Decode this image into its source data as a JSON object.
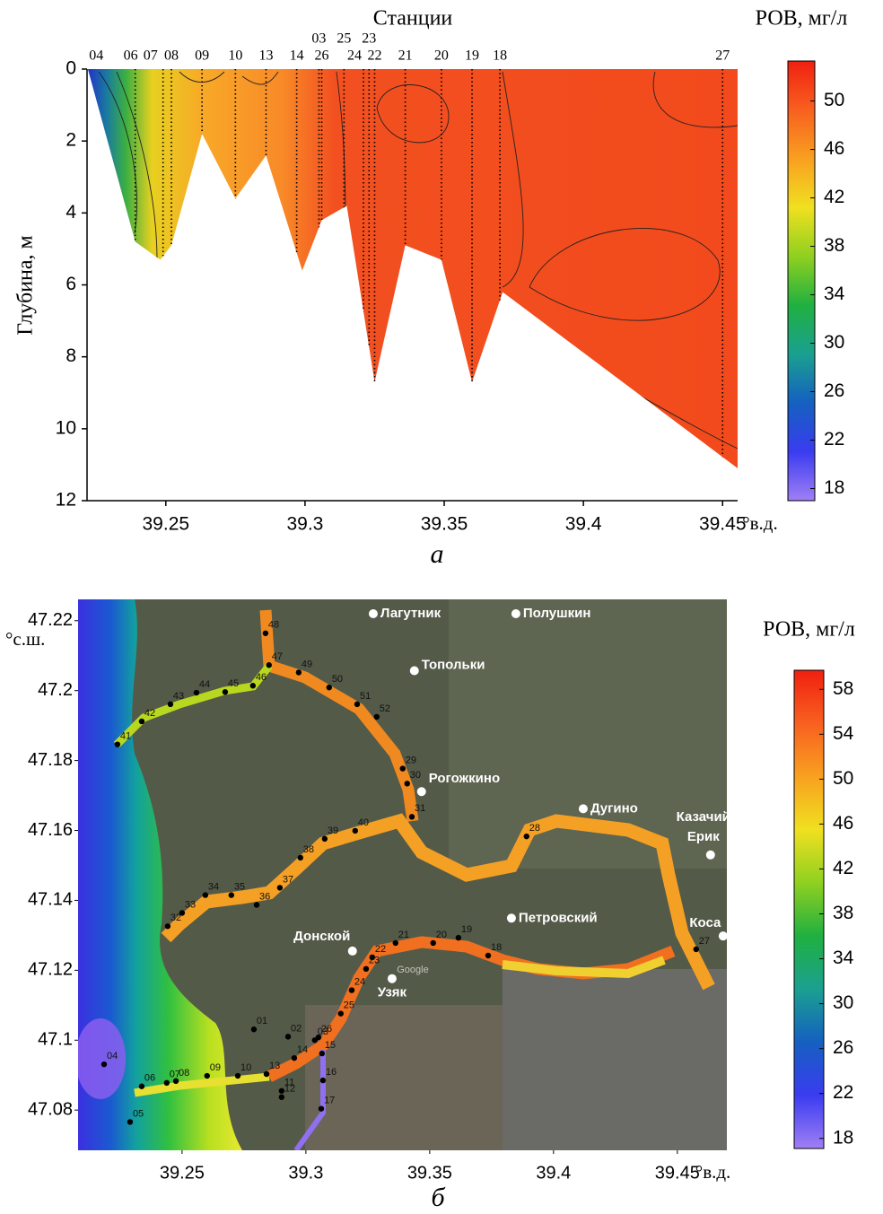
{
  "chart_data": [
    {
      "type": "contour-section",
      "x_top_label": "Станции",
      "ylabel": "Глубина, м",
      "x_unit_label": "°в.д.",
      "colorbar_label": "РОВ, мг/л",
      "panel_label": "а",
      "xlim": [
        39.2217,
        39.4554
      ],
      "xticks": [
        39.25,
        39.3,
        39.35,
        39.4,
        39.45
      ],
      "ylim": [
        0,
        12
      ],
      "yticks": [
        0,
        2,
        4,
        6,
        8,
        10,
        12
      ],
      "y_inverted": true,
      "colorbar_lim": [
        17,
        53.3
      ],
      "colorbar_ticks": [
        18,
        22,
        26,
        30,
        34,
        38,
        42,
        46,
        50
      ],
      "colorscale": [
        "#a07ff5",
        "#3a3cf0",
        "#1560c0",
        "#1aa090",
        "#20b040",
        "#8fd020",
        "#f0e020",
        "#f8a020",
        "#f86020",
        "#f02010"
      ],
      "stations": {
        "names": [
          "04",
          "06",
          "07",
          "08",
          "09",
          "10",
          "13",
          "14",
          "03",
          "26",
          "25",
          "24",
          "23",
          "22",
          "21",
          "20",
          "19",
          "18",
          "27"
        ],
        "lon": [
          39.225,
          39.239,
          39.249,
          39.252,
          39.263,
          39.275,
          39.286,
          39.297,
          39.305,
          39.306,
          39.314,
          39.321,
          39.323,
          39.325,
          39.336,
          39.349,
          39.36,
          39.37,
          39.45
        ]
      },
      "bottom": {
        "lon": [
          39.222,
          39.239,
          39.248,
          39.252,
          39.263,
          39.275,
          39.286,
          39.299,
          39.306,
          39.315,
          39.325,
          39.336,
          39.349,
          39.36,
          39.371,
          39.4554,
          39.4554
        ],
        "depth": [
          0,
          4.8,
          5.3,
          4.9,
          1.8,
          3.6,
          2.4,
          5.6,
          4.2,
          3.8,
          8.7,
          4.9,
          5.3,
          8.7,
          6.2,
          11.1,
          0
        ]
      }
    },
    {
      "type": "map",
      "x_unit_label": "°в.д.",
      "y_unit_label": "°с.ш.",
      "colorbar_label": "РОВ, мг/л",
      "panel_label": "б",
      "watermark": "Google",
      "xlim": [
        39.208,
        39.47
      ],
      "xticks": [
        39.25,
        39.3,
        39.35,
        39.4,
        39.45
      ],
      "ylim": [
        47.0685,
        47.2261
      ],
      "yticks": [
        47.08,
        47.1,
        47.12,
        47.14,
        47.16,
        47.18,
        47.2,
        47.22
      ],
      "colorbar_lim": [
        17.1,
        59.7
      ],
      "colorbar_ticks": [
        18,
        22,
        26,
        30,
        34,
        38,
        42,
        46,
        50,
        54,
        58
      ],
      "colorscale": [
        "#a07ff5",
        "#3a3cf0",
        "#1560c0",
        "#1aa090",
        "#20b040",
        "#8fd020",
        "#f0e020",
        "#f8a020",
        "#f86020",
        "#f02010"
      ],
      "stations": {
        "names": [
          "48",
          "47",
          "49",
          "50",
          "51",
          "52",
          "46",
          "45",
          "44",
          "43",
          "42",
          "41",
          "29",
          "30",
          "31",
          "40",
          "39",
          "38",
          "37",
          "36",
          "35",
          "34",
          "33",
          "32",
          "28",
          "27",
          "18",
          "19",
          "20",
          "21",
          "22",
          "23",
          "24",
          "25",
          "26",
          "03",
          "02",
          "01",
          "14",
          "15",
          "16",
          "17",
          "13",
          "11",
          "12",
          "10",
          "09",
          "08",
          "07",
          "06",
          "04",
          "05"
        ],
        "lon": [
          39.2837,
          39.2851,
          39.2971,
          39.3094,
          39.3207,
          39.3286,
          39.2786,
          39.2674,
          39.2558,
          39.2453,
          39.2337,
          39.2239,
          39.3391,
          39.3409,
          39.3428,
          39.3199,
          39.3076,
          39.2978,
          39.2895,
          39.2801,
          39.2699,
          39.2594,
          39.25,
          39.2442,
          39.3891,
          39.4576,
          39.3736,
          39.3616,
          39.3514,
          39.3362,
          39.3268,
          39.3243,
          39.3185,
          39.3141,
          39.3051,
          39.3036,
          39.2928,
          39.279,
          39.2953,
          39.3065,
          39.3069,
          39.3062,
          39.2841,
          39.2902,
          39.2902,
          39.2725,
          39.2601,
          39.2475,
          39.2438,
          39.2337,
          39.2185,
          39.229
        ],
        "lat": [
          47.2164,
          47.2073,
          47.2052,
          47.2009,
          47.1961,
          47.1925,
          47.2014,
          47.1996,
          47.1994,
          47.1961,
          47.1912,
          47.1846,
          47.1777,
          47.1734,
          47.1639,
          47.1599,
          47.1576,
          47.1522,
          47.1436,
          47.1387,
          47.1415,
          47.1415,
          47.1364,
          47.1326,
          47.1583,
          47.126,
          47.1242,
          47.1293,
          47.1278,
          47.1278,
          47.1237,
          47.1204,
          47.1143,
          47.1076,
          47.1008,
          47.1,
          47.101,
          47.1031,
          47.0949,
          47.0962,
          47.0885,
          47.0804,
          47.0903,
          47.0855,
          47.0837,
          47.0898,
          47.0898,
          47.0883,
          47.0878,
          47.0868,
          47.0931,
          47.0766
        ]
      },
      "places": {
        "names": [
          "Лагутник",
          "Полушкин",
          "Топольки",
          "Рогожкино",
          "Дугино",
          [
            "Казачий",
            "Ерик"
          ],
          "Петровский",
          "Донской",
          "Узяк",
          "Коса"
        ],
        "lon": [
          39.3272,
          39.3848,
          39.3438,
          39.3467,
          39.412,
          39.4634,
          39.383,
          39.3188,
          39.3348,
          39.4685
        ],
        "lat": [
          47.222,
          47.222,
          47.2057,
          47.1711,
          47.1662,
          47.153,
          47.1349,
          47.1255,
          47.1176,
          47.1298
        ]
      }
    }
  ]
}
